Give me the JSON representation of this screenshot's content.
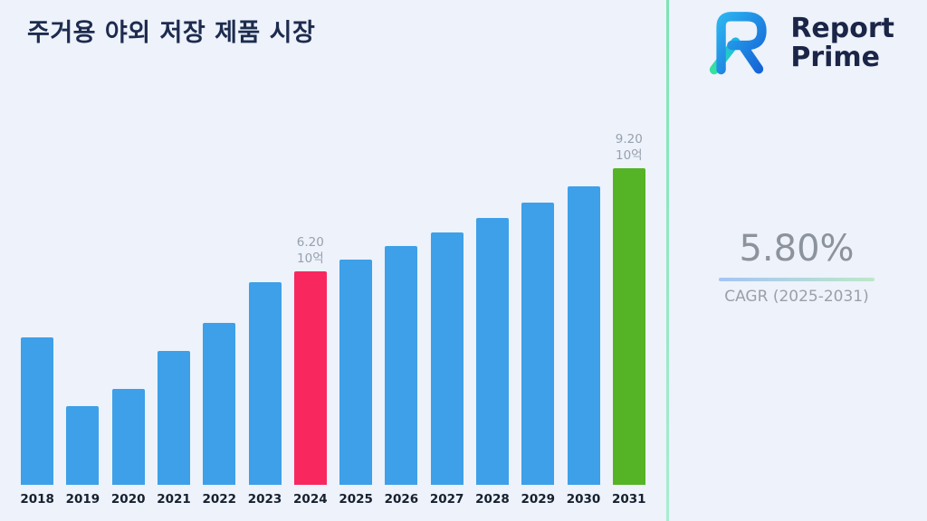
{
  "page": {
    "title": "주거용 야외 저장 제품 시장"
  },
  "brand": {
    "logo_icon": "report-prime-logo",
    "name_line1": "Report",
    "name_line2": "Prime",
    "name_color": "#1b2547"
  },
  "stats": {
    "cagr_value": "5.80%",
    "cagr_label": "CAGR (2025-2031)"
  },
  "chart_data": {
    "type": "bar",
    "title": "주거용 야외 저장 제품 시장",
    "xlabel": "",
    "ylabel": "",
    "unit_label": "10억",
    "grid": false,
    "legend": false,
    "ylim": [
      0,
      10
    ],
    "categories": [
      "2018",
      "2019",
      "2020",
      "2021",
      "2022",
      "2023",
      "2024",
      "2025",
      "2026",
      "2027",
      "2028",
      "2029",
      "2030",
      "2031"
    ],
    "values": [
      4.3,
      2.3,
      2.8,
      3.9,
      4.7,
      5.9,
      6.2,
      6.56,
      6.94,
      7.34,
      7.76,
      8.21,
      8.69,
      9.2
    ],
    "bar_default_color": "#3DA0E8",
    "highlights": [
      {
        "index": 6,
        "color": "#F8285F",
        "label_lines": [
          "6.20",
          "10억"
        ]
      },
      {
        "index": 13,
        "color": "#54B425",
        "label_lines": [
          "9.20",
          "10억"
        ]
      }
    ]
  }
}
